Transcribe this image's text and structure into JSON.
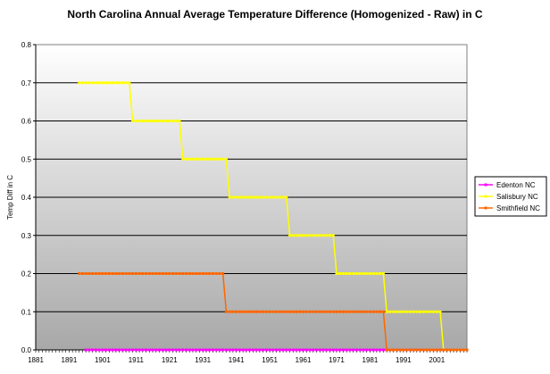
{
  "chart_data": {
    "type": "line",
    "title": "North Carolina Annual Average Temperature Difference (Homogenized - Raw) in C",
    "xlabel": "",
    "ylabel": "Temp Diff in C",
    "xlim": [
      1881,
      2010
    ],
    "ylim": [
      0,
      0.8
    ],
    "x_ticks": [
      "1881",
      "1891",
      "1901",
      "1911",
      "1921",
      "1931",
      "1941",
      "1951",
      "1961",
      "1971",
      "1981",
      "1991",
      "2001"
    ],
    "y_ticks": [
      "0.0",
      "0.1",
      "0.2",
      "0.3",
      "0.4",
      "0.5",
      "0.6",
      "0.7",
      "0.8"
    ],
    "grid": true,
    "legend_position": "right",
    "series": [
      {
        "name": "Edenton NC",
        "color": "#ff00ff",
        "segments": [
          {
            "start": 1896,
            "end": 2010,
            "value": 0.0
          }
        ]
      },
      {
        "name": "Salisbury NC",
        "color": "#ffff00",
        "segments": [
          {
            "start": 1894,
            "end": 1909,
            "value": 0.7
          },
          {
            "start": 1910,
            "end": 1924,
            "value": 0.6
          },
          {
            "start": 1925,
            "end": 1938,
            "value": 0.5
          },
          {
            "start": 1939,
            "end": 1956,
            "value": 0.4
          },
          {
            "start": 1957,
            "end": 1970,
            "value": 0.3
          },
          {
            "start": 1971,
            "end": 1985,
            "value": 0.2
          },
          {
            "start": 1986,
            "end": 2002,
            "value": 0.1
          },
          {
            "start": 2003,
            "end": 2010,
            "value": 0.0
          }
        ]
      },
      {
        "name": "Smithfield NC",
        "color": "#ff6600",
        "segments": [
          {
            "start": 1894,
            "end": 1937,
            "value": 0.2
          },
          {
            "start": 1938,
            "end": 1985,
            "value": 0.1
          },
          {
            "start": 1986,
            "end": 2010,
            "value": 0.0
          }
        ]
      }
    ]
  }
}
